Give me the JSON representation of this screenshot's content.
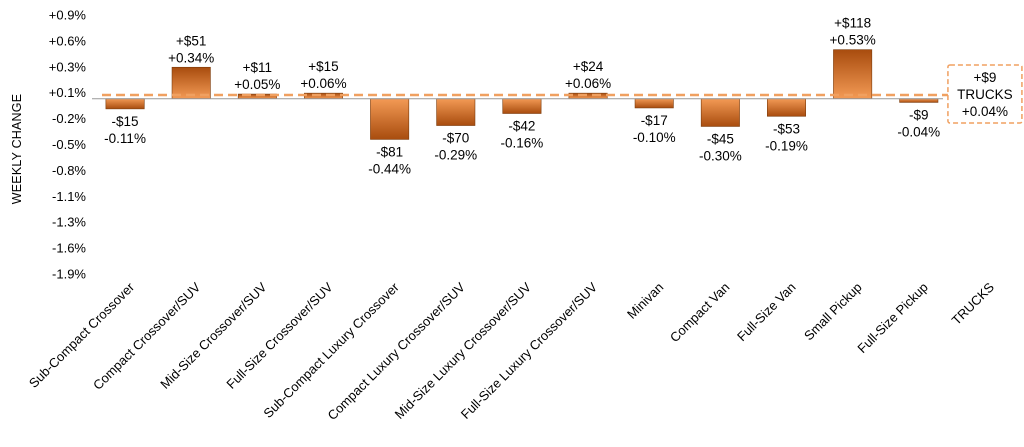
{
  "chart_data": {
    "type": "bar",
    "ylabel": "WEEKLY CHANGE",
    "ylim": [
      -1.9,
      0.9
    ],
    "y_ticks": [
      "+0.9%",
      "+0.6%",
      "+0.3%",
      "+0.1%",
      "-0.2%",
      "-0.5%",
      "-0.8%",
      "-1.1%",
      "-1.3%",
      "-1.6%",
      "-1.9%"
    ],
    "categories": [
      "Sub-Compact Crossover",
      "Compact Crossover/SUV",
      "Mid-Size Crossover/SUV",
      "Full-Size Crossover/SUV",
      "Sub-Compact Luxury Crossover",
      "Compact Luxury Crossover/SUV",
      "Mid-Size Luxury Crossover/SUV",
      "Full-Size Luxury Crossover/SUV",
      "Minivan",
      "Compact Van",
      "Full-Size Van",
      "Small Pickup",
      "Full-Size Pickup",
      "TRUCKS"
    ],
    "values": [
      -0.11,
      0.34,
      0.05,
      0.06,
      -0.44,
      -0.29,
      -0.16,
      0.06,
      -0.1,
      -0.3,
      -0.19,
      0.53,
      -0.04,
      null
    ],
    "dollar_labels": [
      "-$15",
      "+$51",
      "+$11",
      "+$15",
      "-$81",
      "-$70",
      "-$42",
      "+$24",
      "-$17",
      "-$45",
      "-$53",
      "+$118",
      "-$9",
      "+$9"
    ],
    "percent_labels": [
      "-0.11%",
      "+0.34%",
      "+0.05%",
      "+0.06%",
      "-0.44%",
      "-0.29%",
      "-0.16%",
      "+0.06%",
      "-0.10%",
      "-0.30%",
      "-0.19%",
      "+0.53%",
      "-0.04%",
      "+0.04%"
    ],
    "reference_line": {
      "value": 0.04,
      "label": "TRUCKS",
      "style": "dashed"
    },
    "grid": false,
    "colors": {
      "bar_dark": "#a84c0e",
      "bar_light": "#f39a55",
      "reference": "#f0a060",
      "axis": "#999999"
    }
  }
}
